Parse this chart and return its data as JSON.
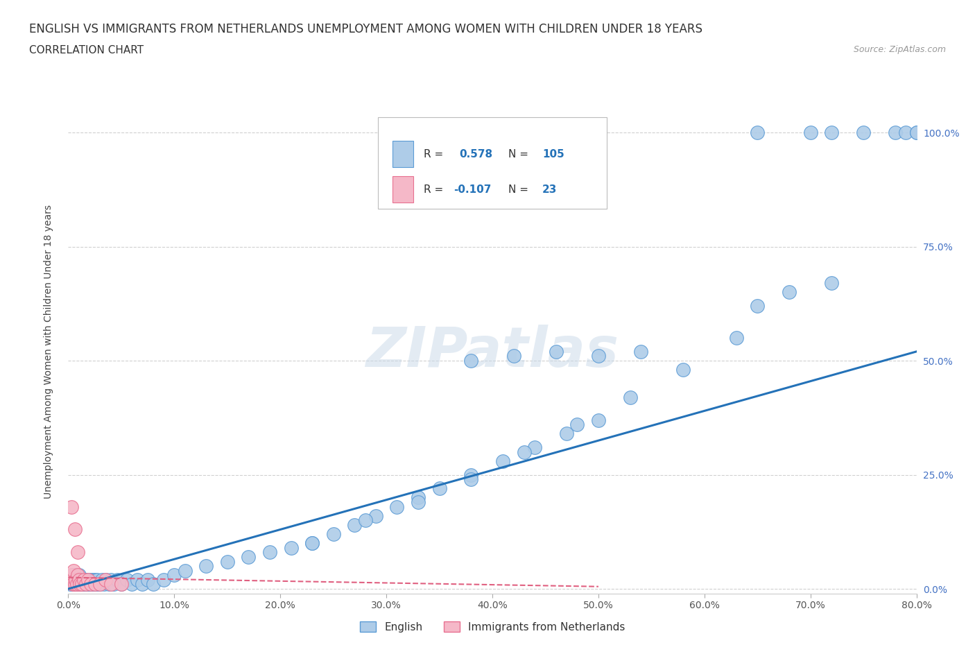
{
  "title": "ENGLISH VS IMMIGRANTS FROM NETHERLANDS UNEMPLOYMENT AMONG WOMEN WITH CHILDREN UNDER 18 YEARS",
  "subtitle": "CORRELATION CHART",
  "source": "Source: ZipAtlas.com",
  "ylabel": "Unemployment Among Women with Children Under 18 years",
  "xlim": [
    0.0,
    0.8
  ],
  "ylim": [
    -0.01,
    1.05
  ],
  "xticks": [
    0.0,
    0.1,
    0.2,
    0.3,
    0.4,
    0.5,
    0.6,
    0.7,
    0.8
  ],
  "yticks": [
    0.0,
    0.25,
    0.5,
    0.75,
    1.0
  ],
  "english_color": "#aecce8",
  "netherlands_color": "#f5b8c8",
  "english_edge_color": "#5b9bd5",
  "netherlands_edge_color": "#e87090",
  "trend_english_color": "#2472b8",
  "trend_netherlands_color": "#e06080",
  "R_english": 0.578,
  "N_english": 105,
  "R_netherlands": -0.107,
  "N_netherlands": 23,
  "background_color": "#ffffff",
  "grid_color": "#d0d0d0",
  "eng_x": [
    0.002,
    0.003,
    0.004,
    0.004,
    0.005,
    0.005,
    0.005,
    0.006,
    0.006,
    0.007,
    0.007,
    0.007,
    0.008,
    0.008,
    0.008,
    0.009,
    0.009,
    0.01,
    0.01,
    0.01,
    0.011,
    0.011,
    0.012,
    0.012,
    0.013,
    0.013,
    0.014,
    0.014,
    0.015,
    0.015,
    0.016,
    0.016,
    0.017,
    0.018,
    0.018,
    0.019,
    0.02,
    0.021,
    0.022,
    0.023,
    0.024,
    0.025,
    0.026,
    0.027,
    0.028,
    0.03,
    0.032,
    0.034,
    0.036,
    0.038,
    0.04,
    0.043,
    0.046,
    0.05,
    0.055,
    0.06,
    0.065,
    0.07,
    0.075,
    0.08,
    0.09,
    0.1,
    0.11,
    0.13,
    0.15,
    0.17,
    0.19,
    0.21,
    0.23,
    0.25,
    0.27,
    0.29,
    0.31,
    0.33,
    0.35,
    0.38,
    0.41,
    0.44,
    0.47,
    0.5,
    0.38,
    0.42,
    0.46,
    0.5,
    0.54,
    0.65,
    0.72,
    0.78,
    0.79,
    0.8,
    0.65,
    0.7,
    0.75,
    0.8,
    0.68,
    0.72,
    0.63,
    0.58,
    0.53,
    0.48,
    0.43,
    0.38,
    0.33,
    0.28,
    0.23
  ],
  "eng_y": [
    0.01,
    0.02,
    0.01,
    0.03,
    0.01,
    0.02,
    0.03,
    0.01,
    0.02,
    0.01,
    0.02,
    0.03,
    0.01,
    0.02,
    0.03,
    0.01,
    0.02,
    0.01,
    0.02,
    0.03,
    0.01,
    0.02,
    0.01,
    0.02,
    0.01,
    0.02,
    0.01,
    0.02,
    0.01,
    0.02,
    0.01,
    0.02,
    0.01,
    0.01,
    0.02,
    0.01,
    0.01,
    0.02,
    0.01,
    0.02,
    0.01,
    0.02,
    0.01,
    0.02,
    0.01,
    0.01,
    0.02,
    0.01,
    0.02,
    0.01,
    0.02,
    0.01,
    0.02,
    0.01,
    0.02,
    0.01,
    0.02,
    0.01,
    0.02,
    0.01,
    0.02,
    0.03,
    0.04,
    0.05,
    0.06,
    0.07,
    0.08,
    0.09,
    0.1,
    0.12,
    0.14,
    0.16,
    0.18,
    0.2,
    0.22,
    0.25,
    0.28,
    0.31,
    0.34,
    0.37,
    0.5,
    0.51,
    0.52,
    0.51,
    0.52,
    0.62,
    1.0,
    1.0,
    1.0,
    1.0,
    1.0,
    1.0,
    1.0,
    1.0,
    0.65,
    0.67,
    0.55,
    0.48,
    0.42,
    0.36,
    0.3,
    0.24,
    0.19,
    0.15,
    0.1
  ],
  "neth_x": [
    0.002,
    0.003,
    0.004,
    0.005,
    0.006,
    0.007,
    0.008,
    0.009,
    0.01,
    0.011,
    0.013,
    0.015,
    0.017,
    0.019,
    0.021,
    0.025,
    0.03,
    0.035,
    0.04,
    0.05,
    0.003,
    0.006,
    0.009
  ],
  "neth_y": [
    0.02,
    0.03,
    0.01,
    0.04,
    0.01,
    0.02,
    0.01,
    0.03,
    0.02,
    0.01,
    0.01,
    0.02,
    0.01,
    0.02,
    0.01,
    0.01,
    0.01,
    0.02,
    0.01,
    0.01,
    0.18,
    0.13,
    0.08
  ],
  "trend_eng_x0": 0.0,
  "trend_eng_y0": 0.0,
  "trend_eng_x1": 0.8,
  "trend_eng_y1": 0.52,
  "trend_neth_x0": 0.0,
  "trend_neth_y0": 0.025,
  "trend_neth_x1": 0.5,
  "trend_neth_y1": 0.005
}
